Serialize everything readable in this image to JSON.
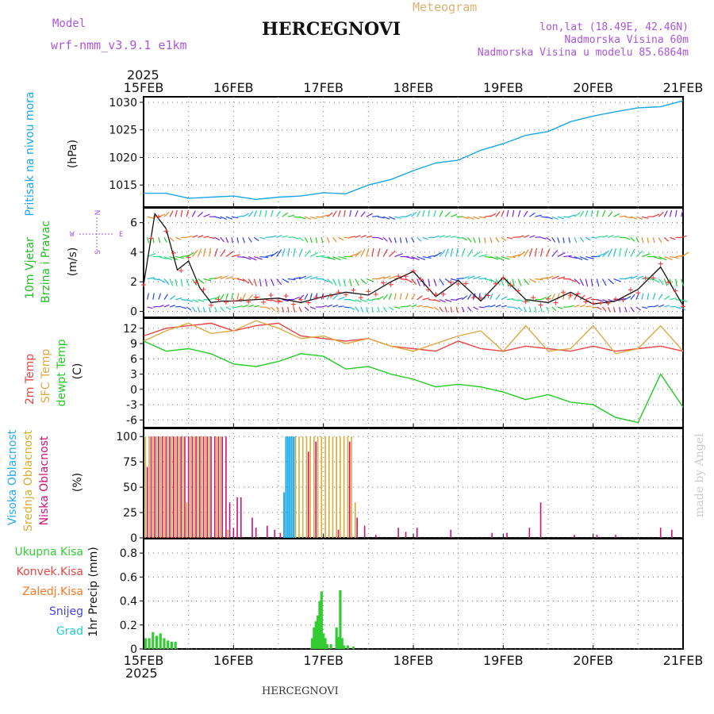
{
  "header": {
    "model_label": "Model",
    "model_name": "wrf-nmm_v3.9.1 e1km",
    "title": "HERCEGNOVI",
    "meteogram_label": "Meteogram",
    "coords": "lon,lat (18.49E, 42.46N)",
    "elevation": "Nadmorska Visina 60m",
    "model_elevation": "Nadmorska Visina u modelu 85.6864m",
    "year_top": "2025",
    "year_bottom": "2025",
    "footer_title": "HERCEGNOVI",
    "watermark": "made by Angel"
  },
  "colors": {
    "pressure": "#1aa6e6",
    "temp2m": "#e84444",
    "sfc": "#e0a844",
    "dewpt": "#22cc22",
    "high_cloud": "#22aaee",
    "mid_cloud": "#ddaa33",
    "low_cloud": "#cc1177",
    "precip": "#33cc33",
    "speed_cross": "#ee3333",
    "grid": "#777777"
  },
  "chart_data": [
    {
      "type": "line",
      "name": "pressure",
      "ylabel_parts": [
        "Pritisak na nivou mora",
        "(hPa)"
      ],
      "x_ticks": [
        "15FEB",
        "16FEB",
        "17FEB",
        "18FEB",
        "19FEB",
        "20FEB",
        "21FEB"
      ],
      "y_ticks": [
        "1015",
        "1020",
        "1025",
        "1030"
      ],
      "ylim": [
        1011,
        1031
      ],
      "x_hours": [
        0,
        6,
        12,
        18,
        24,
        30,
        36,
        42,
        48,
        54,
        60,
        66,
        72,
        78,
        84,
        90,
        96,
        102,
        108,
        114,
        120,
        126,
        132,
        138,
        144
      ],
      "values": [
        1013.5,
        1013.5,
        1012.6,
        1012.8,
        1013.0,
        1012.4,
        1012.8,
        1013.0,
        1013.6,
        1013.4,
        1015.0,
        1016.0,
        1017.6,
        1019.0,
        1019.5,
        1021.3,
        1022.5,
        1024.0,
        1024.7,
        1026.5,
        1027.5,
        1028.3,
        1029.0,
        1029.2,
        1030.3
      ]
    },
    {
      "type": "line",
      "name": "wind",
      "ylabel_parts": [
        "10m Vjetar",
        "Brzina i Pravac",
        "(m/s)"
      ],
      "compass": [
        "N",
        "W",
        "E",
        "S"
      ],
      "y_ticks": [
        "0",
        "2",
        "4",
        "6"
      ],
      "ylim": [
        -0.4,
        7.0
      ],
      "x_hours": [
        0,
        3,
        6,
        9,
        12,
        15,
        18,
        21,
        24,
        30,
        36,
        42,
        48,
        54,
        60,
        66,
        72,
        78,
        84,
        90,
        96,
        102,
        108,
        114,
        120,
        126,
        132,
        138,
        144
      ],
      "values": [
        1.8,
        6.6,
        5.6,
        2.8,
        3.4,
        1.6,
        0.6,
        0.7,
        0.7,
        0.8,
        0.9,
        0.6,
        1.0,
        1.3,
        1.1,
        2.0,
        2.7,
        1.0,
        2.1,
        0.7,
        2.3,
        0.8,
        0.6,
        1.3,
        0.5,
        0.7,
        1.5,
        3.0,
        0.4
      ],
      "arrow_rows": [
        0.3,
        0.8,
        2.2,
        3.7,
        5.0,
        6.4
      ]
    },
    {
      "type": "line",
      "name": "temperature",
      "ylabel_parts": [
        "2m Temp",
        "SFC Temp",
        "dewpt Temp",
        "(C)"
      ],
      "y_ticks": [
        "12",
        "9",
        "6",
        "3",
        "0",
        "-3",
        "-6"
      ],
      "ylim": [
        -7.5,
        14
      ],
      "x_hours": [
        0,
        6,
        12,
        18,
        24,
        30,
        36,
        42,
        48,
        54,
        60,
        66,
        72,
        78,
        84,
        90,
        96,
        102,
        108,
        114,
        120,
        126,
        132,
        138,
        144
      ],
      "series": [
        {
          "name": "2m Temp",
          "values": [
            10.5,
            12.0,
            12.5,
            13.0,
            11.5,
            12.5,
            13.0,
            10.5,
            10.0,
            9.5,
            10.0,
            8.5,
            8.0,
            7.5,
            9.5,
            8.0,
            7.5,
            8.5,
            8.0,
            7.5,
            8.5,
            7.5,
            8.0,
            8.5,
            7.5
          ]
        },
        {
          "name": "SFC Temp",
          "values": [
            9.5,
            11.5,
            13.0,
            11.0,
            11.5,
            13.5,
            12.0,
            10.0,
            10.5,
            9.0,
            10.0,
            8.5,
            7.5,
            9.0,
            10.5,
            11.5,
            7.5,
            12.5,
            7.5,
            8.0,
            12.5,
            7.0,
            8.0,
            12.5,
            7.5
          ]
        },
        {
          "name": "dewpt Temp",
          "values": [
            9.5,
            7.5,
            8.0,
            7.0,
            5.0,
            4.5,
            5.5,
            7.0,
            6.5,
            4.0,
            4.5,
            3.0,
            2.0,
            0.5,
            1.0,
            0.5,
            -0.5,
            -2.0,
            -1.0,
            -2.5,
            -3.0,
            -5.5,
            -6.5,
            3.0,
            -3.5
          ]
        }
      ]
    },
    {
      "type": "bar",
      "name": "clouds",
      "ylabel_parts": [
        "Visoka Oblacnost",
        "Srednja Oblacnost",
        "Niska Oblacnost",
        "(%)"
      ],
      "y_ticks": [
        "0",
        "25",
        "50",
        "75",
        "100"
      ],
      "ylim": [
        0,
        108
      ],
      "series": [
        {
          "name": "Visoka Oblacnost",
          "x_hours": [
            37.5,
            38.0,
            38.5,
            39.0,
            39.5,
            40.0,
            40.5
          ],
          "values": [
            45,
            100,
            100,
            100,
            100,
            100,
            100
          ]
        },
        {
          "name": "Srednja Oblacnost",
          "x_hours": [
            0.5,
            1.5,
            2.5,
            3.5,
            4.5,
            5.5,
            6.5,
            7.5,
            8.5,
            9.5,
            10.5,
            11.5,
            12.5,
            13.5,
            14.5,
            15.5,
            16.5,
            17.5,
            19.5,
            20.5,
            22.5,
            40.5,
            41.5,
            42.5,
            43.5,
            44.5,
            45.5,
            46.5,
            47.5,
            48.5,
            49.5,
            50.5,
            51.5,
            52.5,
            53.5,
            54.5,
            55.5,
            56.5
          ],
          "values": [
            100,
            100,
            100,
            100,
            100,
            100,
            100,
            100,
            100,
            100,
            100,
            35,
            100,
            100,
            100,
            100,
            100,
            100,
            100,
            100,
            8,
            100,
            100,
            100,
            100,
            100,
            100,
            100,
            100,
            100,
            100,
            100,
            100,
            100,
            100,
            100,
            100,
            35
          ]
        },
        {
          "name": "Niska Oblacnost",
          "x_hours": [
            1.0,
            2.0,
            3.0,
            4.0,
            5.0,
            6.0,
            7.0,
            8.0,
            9.0,
            10.0,
            11.0,
            12.0,
            13.0,
            14.0,
            15.0,
            16.0,
            17.0,
            18.0,
            19.0,
            20.0,
            21.0,
            22.0,
            23.0,
            24.0,
            25.0,
            26.0,
            29.0,
            30.0,
            33.0,
            35.0,
            36.5,
            44.0,
            46.0,
            52.0,
            55.0,
            57.0,
            59.0,
            62.0,
            68.0,
            70.0,
            73.0,
            82.0,
            93.0,
            97.0,
            103.0,
            106.0,
            115.0,
            121.0,
            126.0,
            138.0,
            141.0
          ],
          "values": [
            70,
            100,
            100,
            100,
            100,
            100,
            100,
            100,
            100,
            100,
            100,
            100,
            100,
            100,
            100,
            100,
            100,
            100,
            100,
            100,
            100,
            100,
            35,
            10,
            40,
            40,
            20,
            10,
            12,
            8,
            5,
            85,
            95,
            8,
            95,
            20,
            12,
            3,
            10,
            6,
            10,
            8,
            5,
            5,
            10,
            35,
            3,
            3,
            3,
            10,
            8
          ]
        }
      ]
    },
    {
      "type": "bar",
      "name": "precip",
      "ylabel_parts": [
        "1hr Precip (mm)"
      ],
      "legend": [
        "Ukupna Kisa",
        "Konvek.Kisa",
        "Zaledj.Kisa",
        "Snijeg",
        "Grad"
      ],
      "legend_colors": [
        "#33cc33",
        "#ee4444",
        "#ff7722",
        "#4444ee",
        "#22cccc"
      ],
      "y_ticks": [
        "0",
        "0.2",
        "0.4",
        "0.6",
        "0.8"
      ],
      "ylim": [
        0,
        0.92
      ],
      "x_hours": [
        0.5,
        1.5,
        2.5,
        3.5,
        4.5,
        5.5,
        6.5,
        7.5,
        8.5,
        45.0,
        45.5,
        46.0,
        46.5,
        47.0,
        47.5,
        48.0,
        48.5,
        49.0,
        50.0,
        51.5,
        52.0,
        52.5,
        53.0,
        53.5,
        54.5,
        56.0
      ],
      "values": [
        0.09,
        0.09,
        0.14,
        0.11,
        0.13,
        0.09,
        0.07,
        0.06,
        0.06,
        0.09,
        0.18,
        0.23,
        0.28,
        0.4,
        0.48,
        0.13,
        0.09,
        0.04,
        0.04,
        0.18,
        0.1,
        0.49,
        0.09,
        0.03,
        0.03,
        0.02
      ]
    }
  ]
}
